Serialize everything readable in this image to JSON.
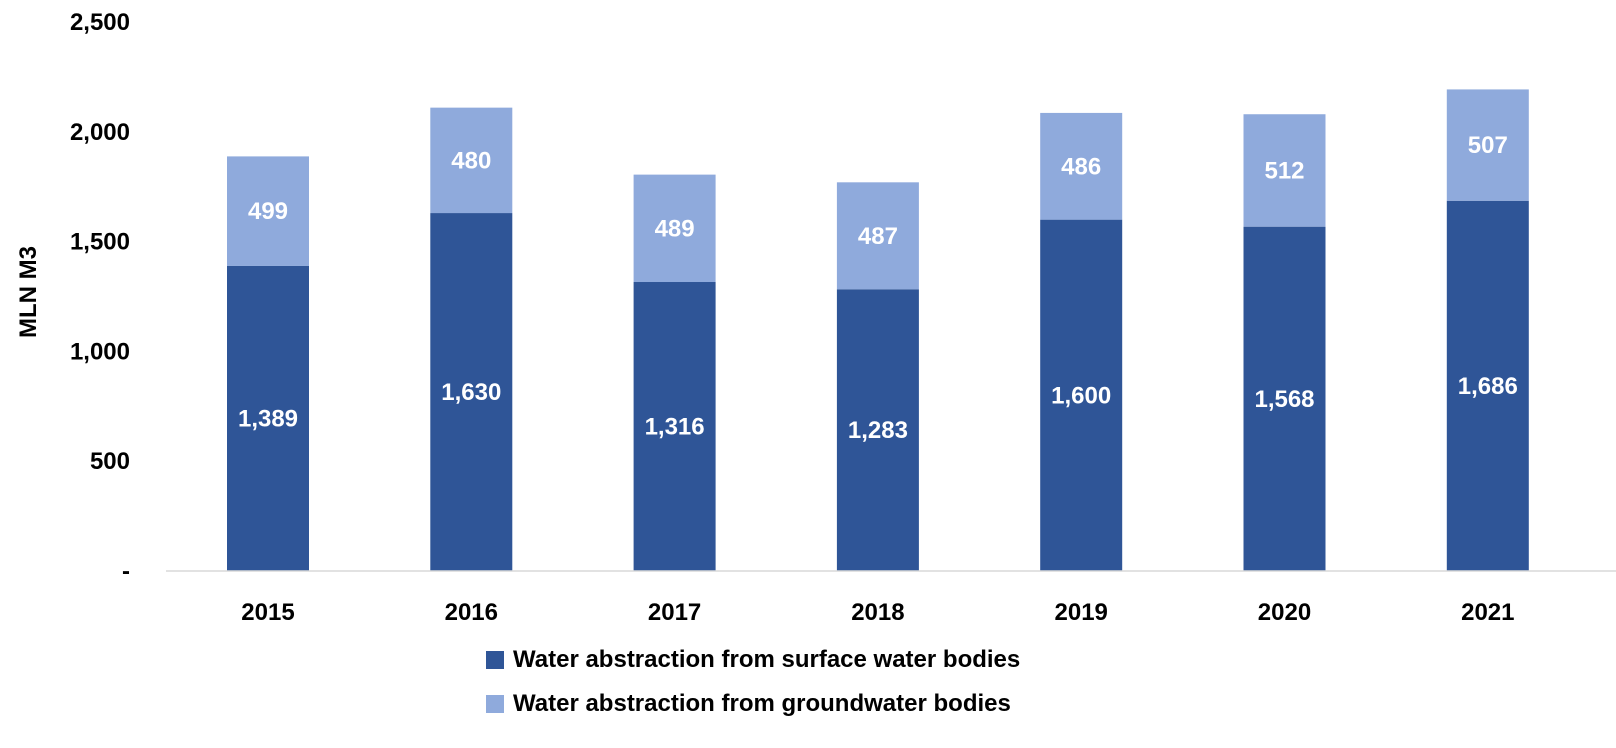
{
  "chart_data": {
    "type": "bar",
    "stacked": true,
    "categories": [
      "2015",
      "2016",
      "2017",
      "2018",
      "2019",
      "2020",
      "2021"
    ],
    "series": [
      {
        "name": "Water abstraction from surface water bodies",
        "values": [
          1389,
          1630,
          1316,
          1283,
          1600,
          1568,
          1686
        ],
        "labels": [
          "1,389",
          "1,630",
          "1,316",
          "1,283",
          "1,600",
          "1,568",
          "1,686"
        ],
        "color": "#2F5597"
      },
      {
        "name": "Water abstraction from groundwater bodies",
        "values": [
          499,
          480,
          489,
          487,
          486,
          512,
          507
        ],
        "labels": [
          "499",
          "480",
          "489",
          "487",
          "486",
          "512",
          "507"
        ],
        "color": "#8FAADC"
      }
    ],
    "ylabel": "MLN M3",
    "xlabel": "",
    "ylim": [
      0,
      2500
    ],
    "yticks": [
      0,
      500,
      1000,
      1500,
      2000,
      2500
    ],
    "ytick_labels": [
      "-",
      "500",
      "1,000",
      "1,500",
      "2,000",
      "2,500"
    ],
    "grid": false,
    "legend_position": "bottom",
    "axis_color": "#D9D9D9"
  }
}
